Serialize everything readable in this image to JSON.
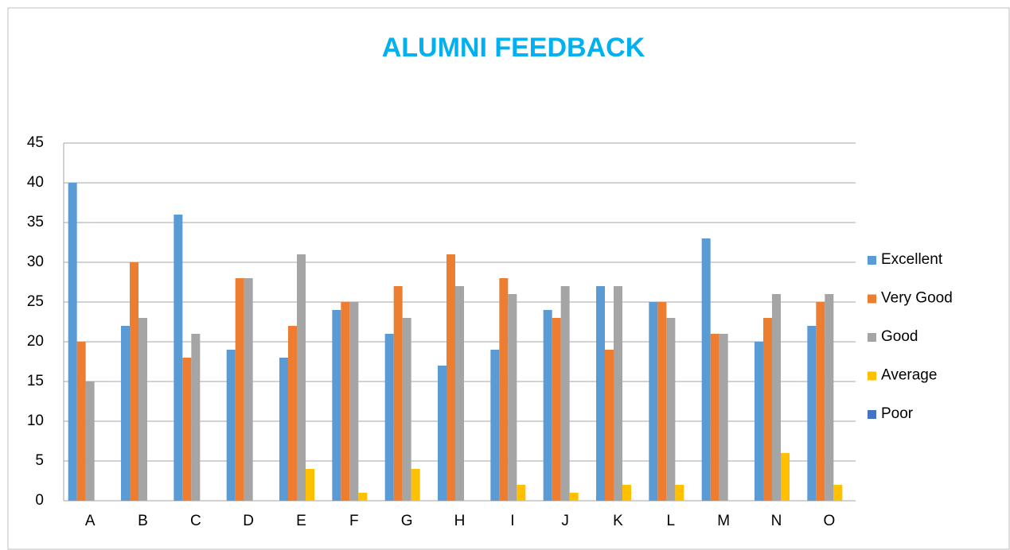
{
  "chart_data": {
    "type": "bar",
    "title": "ALUMNI FEEDBACK",
    "categories": [
      "A",
      "B",
      "C",
      "D",
      "E",
      "F",
      "G",
      "H",
      "I",
      "J",
      "K",
      "L",
      "M",
      "N",
      "O"
    ],
    "series": [
      {
        "name": "Excellent",
        "color": "#5B9BD5",
        "values": [
          40,
          22,
          36,
          19,
          18,
          24,
          21,
          17,
          19,
          24,
          27,
          25,
          33,
          20,
          22
        ]
      },
      {
        "name": "Very Good",
        "color": "#ED7D31",
        "values": [
          20,
          30,
          18,
          28,
          22,
          25,
          27,
          31,
          28,
          23,
          19,
          25,
          21,
          23,
          25
        ]
      },
      {
        "name": "Good",
        "color": "#A5A5A5",
        "values": [
          15,
          23,
          21,
          28,
          31,
          25,
          23,
          27,
          26,
          27,
          27,
          23,
          21,
          26,
          26
        ]
      },
      {
        "name": "Average",
        "color": "#FFC000",
        "values": [
          0,
          0,
          0,
          0,
          4,
          1,
          4,
          0,
          2,
          1,
          2,
          2,
          0,
          6,
          2
        ]
      },
      {
        "name": "Poor",
        "color": "#4472C4",
        "values": [
          0,
          0,
          0,
          0,
          0,
          0,
          0,
          0,
          0,
          0,
          0,
          0,
          0,
          0,
          0
        ]
      }
    ],
    "ylim": [
      0,
      45
    ],
    "yticks": [
      0,
      5,
      10,
      15,
      20,
      25,
      30,
      35,
      40,
      45
    ],
    "grid": true,
    "legend": "right"
  }
}
